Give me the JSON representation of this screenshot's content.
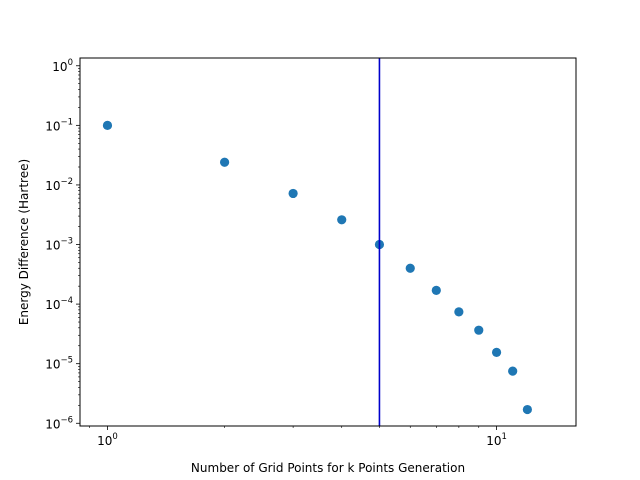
{
  "chart_data": {
    "type": "scatter",
    "xlabel": "Number of Grid Points for k Points Generation",
    "ylabel": "Energy Difference (Hartree)",
    "xscale": "log",
    "yscale": "log",
    "xlim": [
      0.85,
      16
    ],
    "ylim": [
      9e-07,
      1.35
    ],
    "x_ticks": [
      {
        "value": 1,
        "base": "10",
        "exp": "0"
      },
      {
        "value": 10,
        "base": "10",
        "exp": "1"
      }
    ],
    "y_ticks": [
      {
        "value": 1e-06,
        "base": "10",
        "exp": "−6"
      },
      {
        "value": 1e-05,
        "base": "10",
        "exp": "−5"
      },
      {
        "value": 0.0001,
        "base": "10",
        "exp": "−4"
      },
      {
        "value": 0.001,
        "base": "10",
        "exp": "−3"
      },
      {
        "value": 0.01,
        "base": "10",
        "exp": "−2"
      },
      {
        "value": 0.1,
        "base": "10",
        "exp": "−1"
      },
      {
        "value": 1,
        "base": "10",
        "exp": "0"
      }
    ],
    "points": [
      {
        "x": 1,
        "y": 0.1
      },
      {
        "x": 2,
        "y": 0.024
      },
      {
        "x": 3,
        "y": 0.0072
      },
      {
        "x": 4,
        "y": 0.0026
      },
      {
        "x": 5,
        "y": 0.001
      },
      {
        "x": 6,
        "y": 0.0004
      },
      {
        "x": 7,
        "y": 0.00017
      },
      {
        "x": 8,
        "y": 7.4e-05
      },
      {
        "x": 9,
        "y": 3.65e-05
      },
      {
        "x": 10,
        "y": 1.55e-05
      },
      {
        "x": 11,
        "y": 7.5e-06
      },
      {
        "x": 12,
        "y": 1.7e-06
      }
    ],
    "vline": {
      "x": 5,
      "color": "#0000cc"
    },
    "marker_color": "#1f77b4",
    "grid": false
  }
}
